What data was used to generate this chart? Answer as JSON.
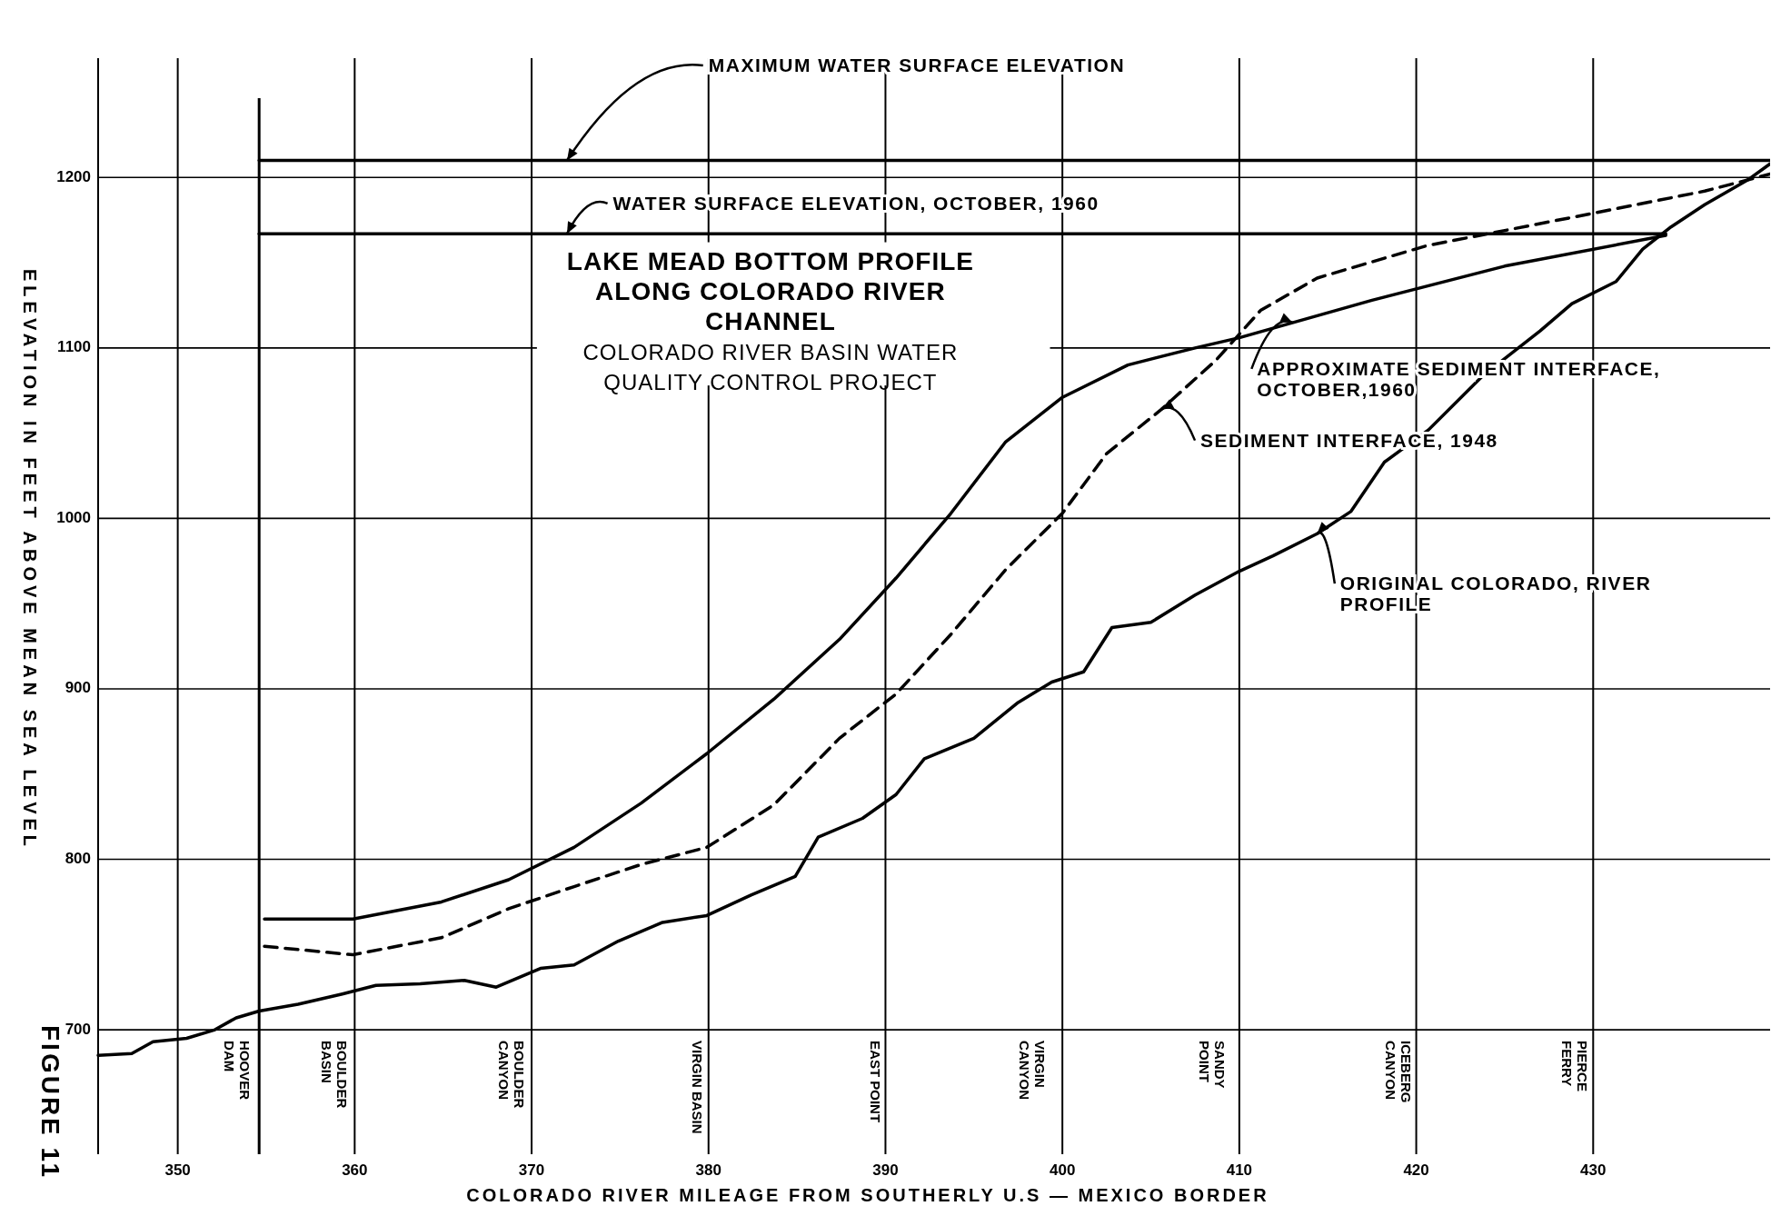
{
  "chart_data": {
    "type": "line",
    "title": "LAKE MEAD BOTTOM PROFILE ALONG COLORADO RIVER CHANNEL",
    "subtitle": "COLORADO RIVER BASIN WATER QUALITY CONTROL PROJECT",
    "xlabel": "COLORADO RIVER MILEAGE FROM SOUTHERLY U.S — MEXICO BORDER",
    "ylabel": "ELEVATION IN FEET ABOVE MEAN SEA LEVEL",
    "xlim": [
      345.5,
      440
    ],
    "ylim": [
      627,
      1270
    ],
    "xticks": [
      350,
      360,
      370,
      380,
      390,
      400,
      410,
      420,
      430
    ],
    "yticks": [
      700,
      800,
      900,
      1000,
      1100,
      1200
    ],
    "grid": true,
    "series": [
      {
        "color": "#000000",
        "x": [
          345.5,
          347.4,
          348.6,
          350.5,
          352.1,
          353.3,
          354.6,
          356.8,
          359.3,
          361.2,
          363.7,
          366.2,
          368,
          370.5,
          372.4,
          374.9,
          377.4,
          379.9,
          382.4,
          384.9,
          386.2,
          388.7,
          390.6,
          392.2,
          395,
          397.5,
          399.4,
          401.2,
          402.8,
          405,
          407.5,
          410,
          411.9,
          414.4,
          416.3,
          418.2,
          420.7,
          423.8,
          427,
          428.8,
          431.3,
          432.8,
          434.4,
          436.3,
          438.8,
          440
        ],
        "values": [
          685,
          686,
          693,
          695,
          700,
          707,
          711,
          715,
          721,
          726,
          727,
          729,
          725,
          736,
          738,
          752,
          763,
          767,
          779,
          790,
          813,
          824,
          838,
          859,
          871,
          892,
          904,
          910,
          936,
          939,
          955,
          969,
          978,
          991,
          1004,
          1033,
          1052,
          1084,
          1110,
          1126,
          1139,
          1158,
          1171,
          1184,
          1199,
          1208
        ]
      },
      {
        "color": "#000000",
        "x": [
          354.9,
          359.9,
          364.9,
          368.7,
          372.4,
          376.2,
          379.9,
          383.7,
          387.4,
          390.6,
          393.7,
          396.8,
          400,
          403.7,
          407.5,
          410,
          417.5,
          425,
          434.1
        ],
        "values": [
          765,
          765,
          775,
          788,
          807,
          833,
          862,
          894,
          929,
          965,
          1003,
          1045,
          1071,
          1090,
          1100,
          1106,
          1128,
          1148,
          1166
        ]
      },
      {
        "color": "#000000",
        "line_style": "dashed",
        "x": [
          354.9,
          359.9,
          364.9,
          368.7,
          372.4,
          376.2,
          379.9,
          383.7,
          387.4,
          390.6,
          393.7,
          396.8,
          400,
          402.5,
          405.6,
          408.7,
          411.2,
          414.4,
          420.6,
          430,
          436.3,
          440
        ],
        "values": [
          749,
          744,
          754,
          771,
          784,
          797,
          807,
          832,
          871,
          897,
          932,
          970,
          1003,
          1038,
          1064,
          1093,
          1122,
          1141,
          1160,
          1179,
          1192,
          1202
        ]
      },
      {
        "color": "#000000",
        "x": [
          354.6,
          440
        ],
        "values": [
          1210,
          1210
        ]
      },
      {
        "color": "#000000",
        "x": [
          354.6,
          434.1
        ],
        "values": [
          1167,
          1167
        ]
      }
    ],
    "ref_lines": [
      {
        "axis": "x",
        "value": 354.6
      }
    ],
    "annotations": [
      {
        "text": "MAXIMUM  WATER  SURFACE  ELEVATION",
        "x": 372,
        "y": 1210
      },
      {
        "text": "WATER  SURFACE  ELEVATION,  OCTOBER,  1960",
        "x": 372,
        "y": 1167
      },
      {
        "text": "APPROXIMATE  SEDIMENT  INTERFACE,\nOCTOBER,1960",
        "x": 413,
        "y": 1115
      },
      {
        "text": "SEDIMENT  INTERFACE, 1948",
        "x": 405.6,
        "y": 1064
      },
      {
        "text": "ORIGINAL  COLORADO,  RIVER\nPROFILE",
        "x": 414.4,
        "y": 991
      },
      "HOOVER\nDAM",
      "BOULDER\nBASIN",
      "BOULDER\nCANYON",
      "VIRGIN BASIN",
      "EAST POINT",
      "VIRGIN\nCANYON",
      "SANDY\nPOINT",
      "ICEBERG\nCANYON",
      "PIERCE\nFERRY",
      "FIGURE  11"
    ]
  }
}
